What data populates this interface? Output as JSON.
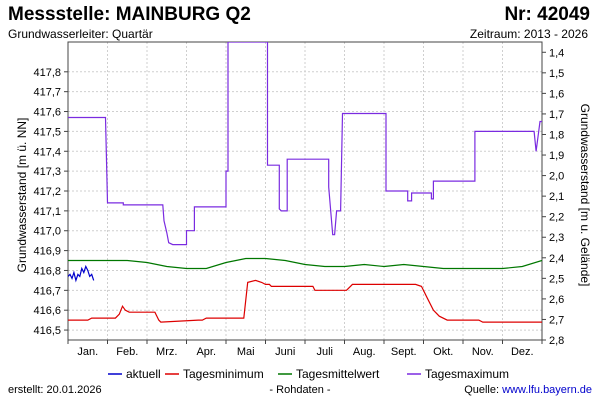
{
  "header": {
    "title": "Messstelle: MAINBURG Q2",
    "number": "Nr: 42049",
    "aquifer": "Grundwasserleiter: Quartär",
    "period": "Zeitraum: 2013 - 2026"
  },
  "footer": {
    "created": "erstellt:  20.01.2026",
    "rawdata": "- Rohdaten -",
    "source_label": "Quelle: ",
    "source_link": "www.lfu.bayern.de"
  },
  "chart_data": {
    "type": "line",
    "ylabel": "Grundwasserstand [m ü. NN]",
    "ylabel_right": "Grundwasserstand [m u. Gelände]",
    "ylim": [
      416.45,
      417.95
    ],
    "ylim_right": [
      1.35,
      2.8
    ],
    "yticks": [
      "416,5",
      "416,6",
      "416,7",
      "416,8",
      "416,9",
      "417,0",
      "417,1",
      "417,2",
      "417,3",
      "417,4",
      "417,5",
      "417,6",
      "417,7",
      "417,8"
    ],
    "yticks_right": [
      "1,4",
      "1,5",
      "1,6",
      "1,7",
      "1,8",
      "1,9",
      "2,0",
      "2,1",
      "2,2",
      "2,3",
      "2,4",
      "2,5",
      "2,6",
      "2,7",
      "2,8"
    ],
    "months": [
      "Jan.",
      "Feb.",
      "Mrz.",
      "Apr.",
      "Mai",
      "Juni",
      "Juli",
      "Aug.",
      "Sept.",
      "Okt.",
      "Nov.",
      "Dez."
    ],
    "grid": true,
    "legend_position": "bottom",
    "series": [
      {
        "name": "aktuell",
        "color": "#0000cc",
        "x": [
          0.0,
          0.05,
          0.1,
          0.15,
          0.2,
          0.25,
          0.3,
          0.35,
          0.4,
          0.45,
          0.5,
          0.55,
          0.6,
          0.65
        ],
        "y": [
          416.77,
          416.78,
          416.76,
          416.79,
          416.75,
          416.78,
          416.77,
          416.81,
          416.79,
          416.82,
          416.8,
          416.77,
          416.78,
          416.75
        ]
      },
      {
        "name": "Tagesminimum",
        "color": "#dd0000",
        "x": [
          0.0,
          0.5,
          0.6,
          1.2,
          1.3,
          1.38,
          1.45,
          1.55,
          1.7,
          2.2,
          2.3,
          2.35,
          3.3,
          3.4,
          3.5,
          4.45,
          4.55,
          4.75,
          4.9,
          5.0,
          5.1,
          5.15,
          6.2,
          6.25,
          6.5,
          7.05,
          7.15,
          7.2,
          8.8,
          8.95,
          9.1,
          9.25,
          9.4,
          9.6,
          10.0,
          10.4,
          10.5,
          10.6,
          12.0
        ],
        "y": [
          416.55,
          416.55,
          416.56,
          416.56,
          416.58,
          416.62,
          416.6,
          416.59,
          416.59,
          416.59,
          416.55,
          416.54,
          416.55,
          416.55,
          416.56,
          416.56,
          416.74,
          416.75,
          416.74,
          416.73,
          416.73,
          416.72,
          416.72,
          416.7,
          416.7,
          416.7,
          416.72,
          416.73,
          416.73,
          416.72,
          416.66,
          416.6,
          416.57,
          416.55,
          416.55,
          416.55,
          416.54,
          416.54,
          416.54
        ]
      },
      {
        "name": "Tagesmittelwert",
        "color": "#007700",
        "x": [
          0.0,
          0.5,
          1.0,
          1.5,
          2.0,
          2.5,
          3.0,
          3.5,
          4.0,
          4.5,
          5.0,
          5.5,
          6.0,
          6.5,
          7.0,
          7.5,
          8.0,
          8.5,
          9.0,
          9.5,
          10.0,
          10.5,
          11.0,
          11.5,
          12.0
        ],
        "y": [
          416.85,
          416.85,
          416.85,
          416.85,
          416.84,
          416.82,
          416.81,
          416.81,
          416.84,
          416.86,
          416.86,
          416.85,
          416.83,
          416.82,
          416.82,
          416.83,
          416.82,
          416.83,
          416.82,
          416.81,
          416.81,
          416.81,
          416.81,
          416.82,
          416.85
        ]
      },
      {
        "name": "Tagesmaximum",
        "color": "#7a2be0",
        "x": [
          0.0,
          0.95,
          0.95,
          1.0,
          1.4,
          1.4,
          2.4,
          2.43,
          2.5,
          2.55,
          2.65,
          3.0,
          3.0,
          3.2,
          3.2,
          3.3,
          3.3,
          4.0,
          4.0,
          4.05,
          4.05,
          4.9,
          4.9,
          5.05,
          5.05,
          5.35,
          5.35,
          5.4,
          5.5,
          5.55,
          5.55,
          6.6,
          6.6,
          6.7,
          6.75,
          6.8,
          6.9,
          6.95,
          7.0,
          7.0,
          8.0,
          8.05,
          8.05,
          8.6,
          8.6,
          8.7,
          8.7,
          9.2,
          9.2,
          9.25,
          9.25,
          10.3,
          10.3,
          10.45,
          10.45,
          10.8,
          10.8,
          11.75,
          11.8,
          11.85,
          11.95,
          12.0
        ],
        "y": [
          417.57,
          417.57,
          417.57,
          417.14,
          417.14,
          417.13,
          417.13,
          417.05,
          416.99,
          416.94,
          416.93,
          416.93,
          417.0,
          417.0,
          417.12,
          417.12,
          417.12,
          417.12,
          417.3,
          417.3,
          417.95,
          417.95,
          417.95,
          417.95,
          417.33,
          417.33,
          417.11,
          417.1,
          417.1,
          417.1,
          417.36,
          417.36,
          417.22,
          416.98,
          416.98,
          417.1,
          417.1,
          417.59,
          417.59,
          417.59,
          417.59,
          417.59,
          417.2,
          417.2,
          417.15,
          417.15,
          417.19,
          417.19,
          417.16,
          417.16,
          417.25,
          417.25,
          417.5,
          417.5,
          417.5,
          417.5,
          417.5,
          417.5,
          417.5,
          417.4,
          417.55,
          417.55
        ]
      }
    ]
  }
}
